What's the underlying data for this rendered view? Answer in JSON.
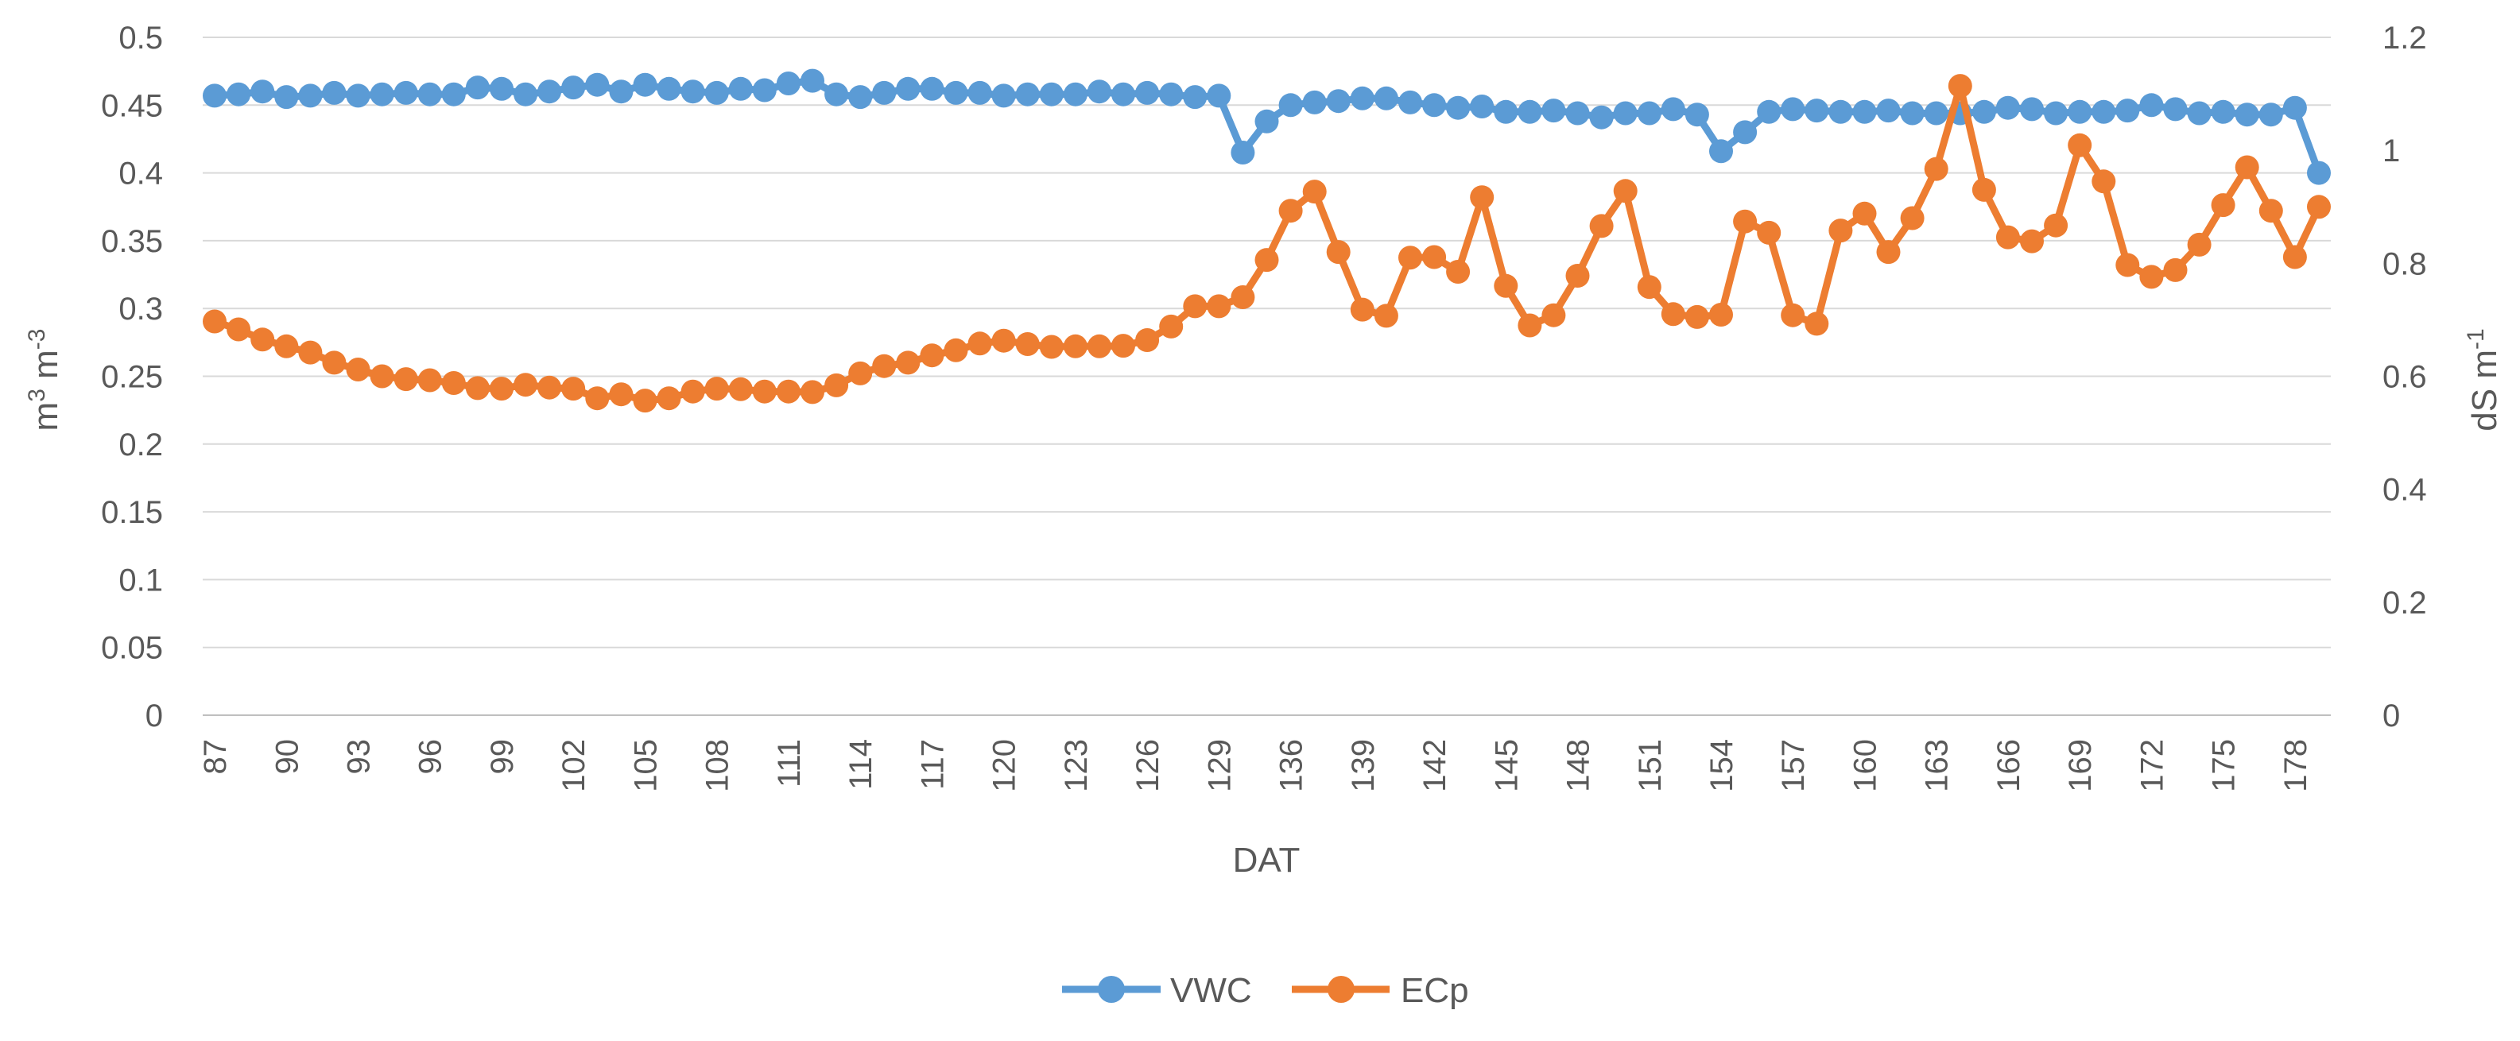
{
  "chart_data": {
    "type": "line",
    "title": "",
    "xlabel": "DAT",
    "ylabel_left": {
      "base": "m",
      "sup1": "3",
      "mid": " m",
      "sup2": "-3"
    },
    "ylabel_right": {
      "base": "dS m",
      "sup": "-1"
    },
    "ylim_left": [
      0,
      0.5
    ],
    "ylim_right": [
      0,
      1.2
    ],
    "left_ticks": [
      "0",
      "0.05",
      "0.1",
      "0.15",
      "0.2",
      "0.25",
      "0.3",
      "0.35",
      "0.4",
      "0.45",
      "0.5"
    ],
    "right_ticks": [
      "0",
      "0.2",
      "0.4",
      "0.6",
      "0.8",
      "1",
      "1.2"
    ],
    "grid": "horizontal",
    "legend_position": "bottom",
    "categories": [
      "87",
      "88",
      "89",
      "90",
      "91",
      "92",
      "93",
      "94",
      "95",
      "96",
      "97",
      "98",
      "99",
      "100",
      "101",
      "102",
      "103",
      "104",
      "105",
      "106",
      "107",
      "108",
      "109",
      "110",
      "111",
      "112",
      "113",
      "114",
      "115",
      "116",
      "117",
      "118",
      "119",
      "120",
      "121",
      "122",
      "123",
      "124",
      "125",
      "126",
      "127",
      "128",
      "129",
      "130",
      "131",
      "136",
      "137",
      "138",
      "139",
      "140",
      "141",
      "142",
      "143",
      "144",
      "145",
      "146",
      "147",
      "148",
      "149",
      "150",
      "151",
      "152",
      "153",
      "154",
      "155",
      "156",
      "157",
      "158",
      "159",
      "160",
      "161",
      "162",
      "163",
      "164",
      "165",
      "166",
      "167",
      "168",
      "169",
      "170",
      "171",
      "172",
      "173",
      "174",
      "175",
      "176",
      "177",
      "178",
      "179"
    ],
    "series": [
      {
        "name": "VWC",
        "axis": "left",
        "color": "#5B9BD5",
        "values": [
          0.457,
          0.458,
          0.46,
          0.456,
          0.457,
          0.459,
          0.457,
          0.458,
          0.459,
          0.458,
          0.458,
          0.463,
          0.462,
          0.458,
          0.46,
          0.463,
          0.465,
          0.46,
          0.465,
          0.462,
          0.46,
          0.459,
          0.462,
          0.461,
          0.466,
          0.468,
          0.458,
          0.456,
          0.459,
          0.462,
          0.462,
          0.459,
          0.459,
          0.457,
          0.458,
          0.458,
          0.458,
          0.46,
          0.458,
          0.459,
          0.458,
          0.456,
          0.457,
          0.415,
          0.438,
          0.45,
          0.452,
          0.453,
          0.455,
          0.455,
          0.452,
          0.45,
          0.448,
          0.449,
          0.445,
          0.445,
          0.446,
          0.444,
          0.441,
          0.444,
          0.444,
          0.447,
          0.443,
          0.416,
          0.43,
          0.445,
          0.447,
          0.446,
          0.445,
          0.445,
          0.446,
          0.444,
          0.444,
          0.444,
          0.445,
          0.448,
          0.447,
          0.444,
          0.445,
          0.445,
          0.446,
          0.45,
          0.447,
          0.444,
          0.445,
          0.443,
          0.443,
          0.448,
          0.4
        ]
      },
      {
        "name": "ECp",
        "axis": "right",
        "color": "#ED7D31",
        "values": [
          0.697,
          0.683,
          0.665,
          0.653,
          0.642,
          0.624,
          0.612,
          0.6,
          0.595,
          0.593,
          0.588,
          0.579,
          0.578,
          0.585,
          0.58,
          0.578,
          0.561,
          0.568,
          0.557,
          0.561,
          0.573,
          0.578,
          0.577,
          0.573,
          0.573,
          0.572,
          0.584,
          0.605,
          0.618,
          0.624,
          0.637,
          0.646,
          0.658,
          0.663,
          0.657,
          0.652,
          0.653,
          0.653,
          0.654,
          0.664,
          0.688,
          0.724,
          0.724,
          0.74,
          0.806,
          0.893,
          0.927,
          0.82,
          0.718,
          0.707,
          0.81,
          0.811,
          0.785,
          0.917,
          0.76,
          0.69,
          0.708,
          0.778,
          0.866,
          0.928,
          0.758,
          0.71,
          0.705,
          0.709,
          0.874,
          0.854,
          0.708,
          0.693,
          0.858,
          0.888,
          0.82,
          0.88,
          0.967,
          1.114,
          0.93,
          0.846,
          0.839,
          0.867,
          1.009,
          0.945,
          0.797,
          0.776,
          0.788,
          0.833,
          0.903,
          0.97,
          0.893,
          0.811,
          0.9
        ]
      }
    ]
  }
}
